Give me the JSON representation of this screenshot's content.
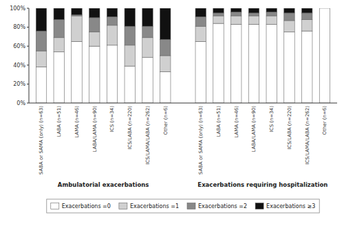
{
  "chart_data": {
    "type": "bar",
    "stacked": true,
    "categories": [
      "SABA or SAMA (only) (n=63)",
      "LABA (n=51)",
      "LAMA (n=46)",
      "LABA/LAMA (n=90)",
      "ICS (n=34)",
      "ICS/LABA (n=220)",
      "ICS/LAMA/LABA (n=262)",
      "Other (n=6)",
      "SABA or SAMA (only) (n=63)",
      "LABA (n=51)",
      "LAMA (n=46)",
      "LABA/LAMA (n=90)",
      "ICS (n=34)",
      "ICS/LABA (n=220)",
      "ICS/LAMA/LABA (n=262)",
      "Other (n=6)"
    ],
    "series": [
      {
        "name": "Exacerbations =0",
        "color": "#ffffff",
        "values": [
          38,
          54,
          65,
          60,
          61,
          39,
          48,
          33,
          65,
          84,
          83,
          83,
          83,
          75,
          76,
          100
        ]
      },
      {
        "name": "Exacerbations =1",
        "color": "#d0d0d0",
        "values": [
          17,
          15,
          27,
          15,
          21,
          22,
          21,
          17,
          16,
          8,
          9,
          9,
          9,
          12,
          12,
          0
        ]
      },
      {
        "name": "Exacerbations =2",
        "color": "#888888",
        "values": [
          21,
          19,
          1,
          15,
          9,
          20,
          12,
          17,
          10,
          3,
          4,
          3,
          4,
          8,
          7,
          0
        ]
      },
      {
        "name": "Exacerbations ≥3",
        "color": "#111111",
        "values": [
          24,
          12,
          7,
          10,
          9,
          19,
          19,
          33,
          9,
          5,
          4,
          5,
          4,
          5,
          5,
          0
        ]
      }
    ],
    "annotations": [
      "Ambulatorial exacerbations",
      "Exacerbations requiring hospitalization"
    ],
    "ylim": [
      0,
      100
    ],
    "yticks": [
      {
        "value": 0,
        "label": "0%"
      },
      {
        "value": 20,
        "label": "20%"
      },
      {
        "value": 40,
        "label": "40%"
      },
      {
        "value": 60,
        "label": "60%"
      },
      {
        "value": 80,
        "label": "80%"
      },
      {
        "value": 100,
        "label": "100%"
      }
    ],
    "grid": false,
    "legend": "bottom"
  }
}
